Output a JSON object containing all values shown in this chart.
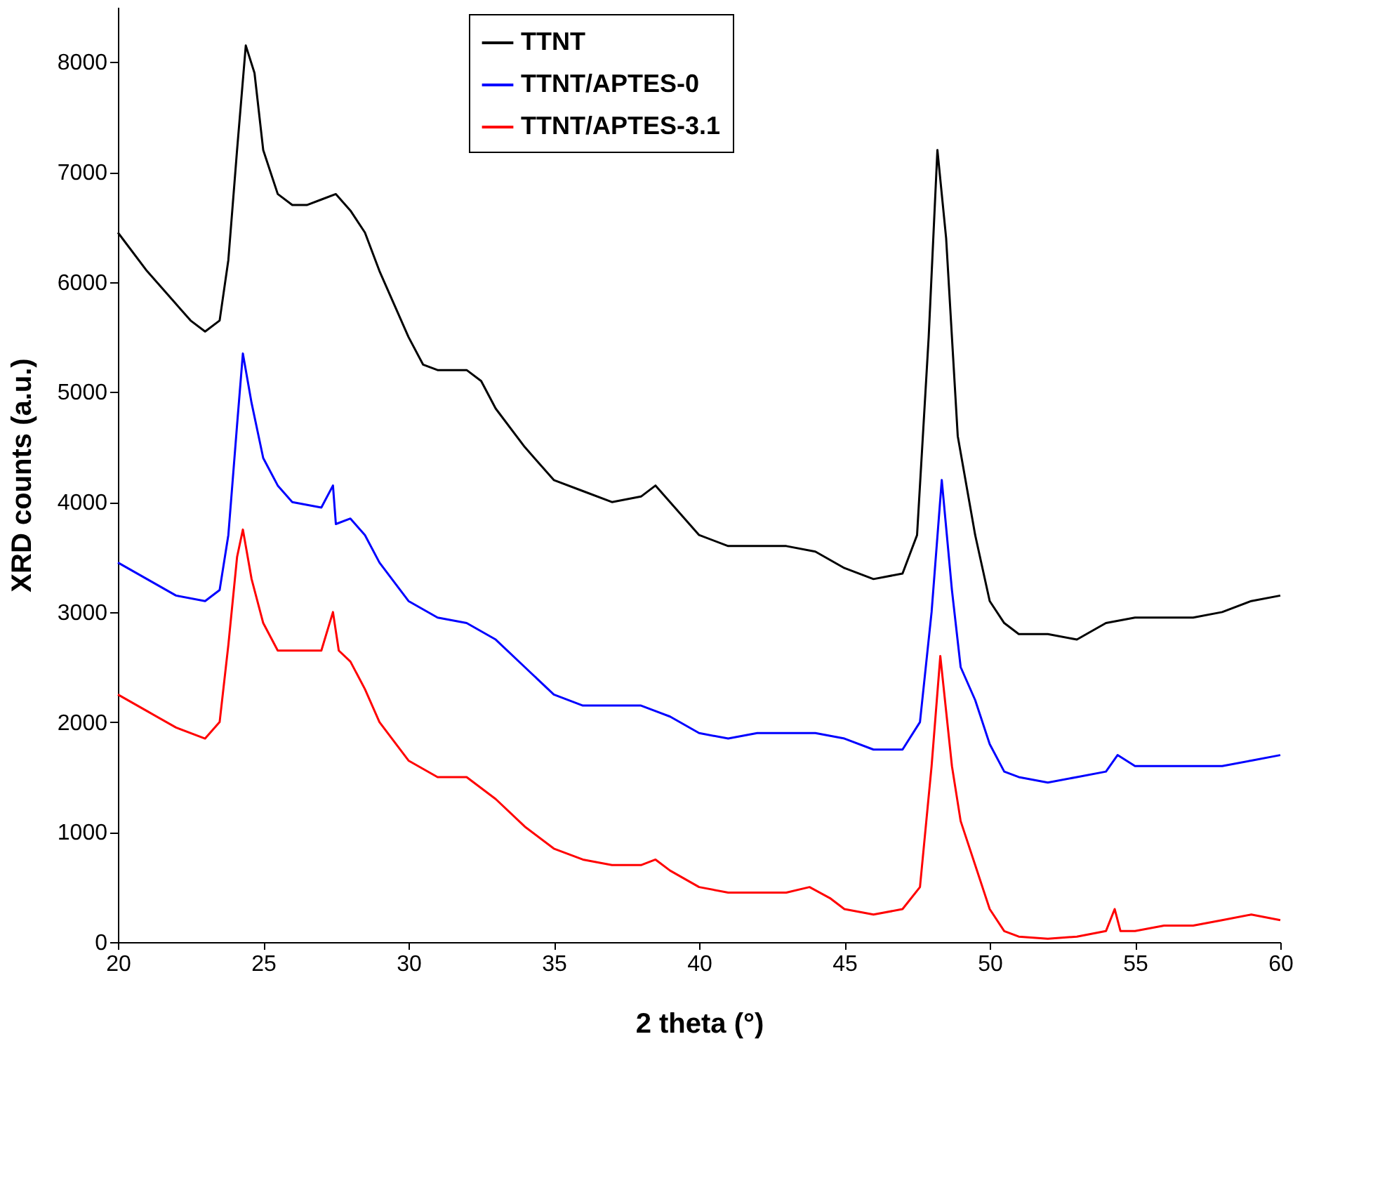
{
  "chart_data": {
    "type": "line",
    "xlabel": "2 theta (°)",
    "ylabel": "XRD counts (a.u.)",
    "xlim": [
      20,
      60
    ],
    "xticks": [
      20,
      25,
      30,
      35,
      40,
      45,
      50,
      55,
      60
    ],
    "ylim": [
      0,
      8500
    ],
    "yticks": [
      0,
      1000,
      2000,
      3000,
      4000,
      5000,
      6000,
      7000,
      8000
    ],
    "grid": false,
    "legend": "top",
    "marker": "none",
    "line_style": "solid",
    "series": [
      {
        "name": "TTNT",
        "color": "#000000",
        "x": [
          20,
          21,
          22,
          22.5,
          23,
          23.5,
          23.8,
          24.1,
          24.4,
          24.7,
          25,
          25.5,
          26,
          26.5,
          27,
          27.5,
          28,
          28.5,
          29,
          29.5,
          30,
          30.5,
          31,
          32,
          32.5,
          33,
          34,
          35,
          36,
          37,
          38,
          38.5,
          39,
          40,
          41,
          42,
          43,
          44,
          45,
          46,
          47,
          47.5,
          47.9,
          48.2,
          48.5,
          48.9,
          49.5,
          50,
          50.5,
          51,
          52,
          53,
          54,
          55,
          56,
          57,
          58,
          59,
          60
        ],
        "values": [
          6450,
          6100,
          5800,
          5650,
          5550,
          5650,
          6200,
          7200,
          8150,
          7900,
          7200,
          6800,
          6700,
          6700,
          6750,
          6800,
          6650,
          6450,
          6100,
          5800,
          5500,
          5250,
          5200,
          5200,
          5100,
          4850,
          4500,
          4200,
          4100,
          4000,
          4050,
          4150,
          4000,
          3700,
          3600,
          3600,
          3600,
          3550,
          3400,
          3300,
          3350,
          3700,
          5500,
          7200,
          6400,
          4600,
          3700,
          3100,
          2900,
          2800,
          2800,
          2750,
          2900,
          2950,
          2950,
          2950,
          3000,
          3100,
          3150
        ]
      },
      {
        "name": "TTNT/APTES-0",
        "color": "#0000ff",
        "x": [
          20,
          21,
          22,
          23,
          23.5,
          23.8,
          24.1,
          24.3,
          24.6,
          25,
          25.5,
          26,
          27,
          27.4,
          27.5,
          28,
          28.5,
          29,
          30,
          31,
          32,
          33,
          34,
          35,
          36,
          37,
          38,
          39,
          40,
          41,
          42,
          43,
          44,
          45,
          46,
          47,
          47.6,
          48.0,
          48.35,
          48.7,
          49,
          49.5,
          50,
          50.5,
          51,
          52,
          53,
          54,
          54.4,
          55,
          56,
          57,
          58,
          59,
          60
        ],
        "values": [
          3450,
          3300,
          3150,
          3100,
          3200,
          3700,
          4700,
          5350,
          4900,
          4400,
          4150,
          4000,
          3950,
          4150,
          3800,
          3850,
          3700,
          3450,
          3100,
          2950,
          2900,
          2750,
          2500,
          2250,
          2150,
          2150,
          2150,
          2050,
          1900,
          1850,
          1900,
          1900,
          1900,
          1850,
          1750,
          1750,
          2000,
          3000,
          4200,
          3200,
          2500,
          2200,
          1800,
          1550,
          1500,
          1450,
          1500,
          1550,
          1700,
          1600,
          1600,
          1600,
          1600,
          1650,
          1700
        ]
      },
      {
        "name": "TTNT/APTES-3.1",
        "color": "#ff0000",
        "x": [
          20,
          21,
          22,
          23,
          23.5,
          23.8,
          24.1,
          24.3,
          24.6,
          25,
          25.5,
          26,
          27,
          27.4,
          27.6,
          28,
          28.5,
          29,
          30,
          31,
          32,
          33,
          34,
          35,
          36,
          37,
          38,
          38.5,
          39,
          40,
          41,
          42,
          43,
          43.8,
          44.5,
          45,
          46,
          47,
          47.6,
          48.0,
          48.3,
          48.7,
          49,
          49.5,
          50,
          50.5,
          51,
          52,
          53,
          54,
          54.3,
          54.5,
          55,
          56,
          57,
          58,
          59,
          60
        ],
        "values": [
          2250,
          2100,
          1950,
          1850,
          2000,
          2700,
          3500,
          3750,
          3300,
          2900,
          2650,
          2650,
          2650,
          3000,
          2650,
          2550,
          2300,
          2000,
          1650,
          1500,
          1500,
          1300,
          1050,
          850,
          750,
          700,
          700,
          750,
          650,
          500,
          450,
          450,
          450,
          500,
          400,
          300,
          250,
          300,
          500,
          1600,
          2600,
          1600,
          1100,
          700,
          300,
          100,
          50,
          30,
          50,
          100,
          300,
          100,
          100,
          150,
          150,
          200,
          250,
          200
        ]
      }
    ]
  }
}
